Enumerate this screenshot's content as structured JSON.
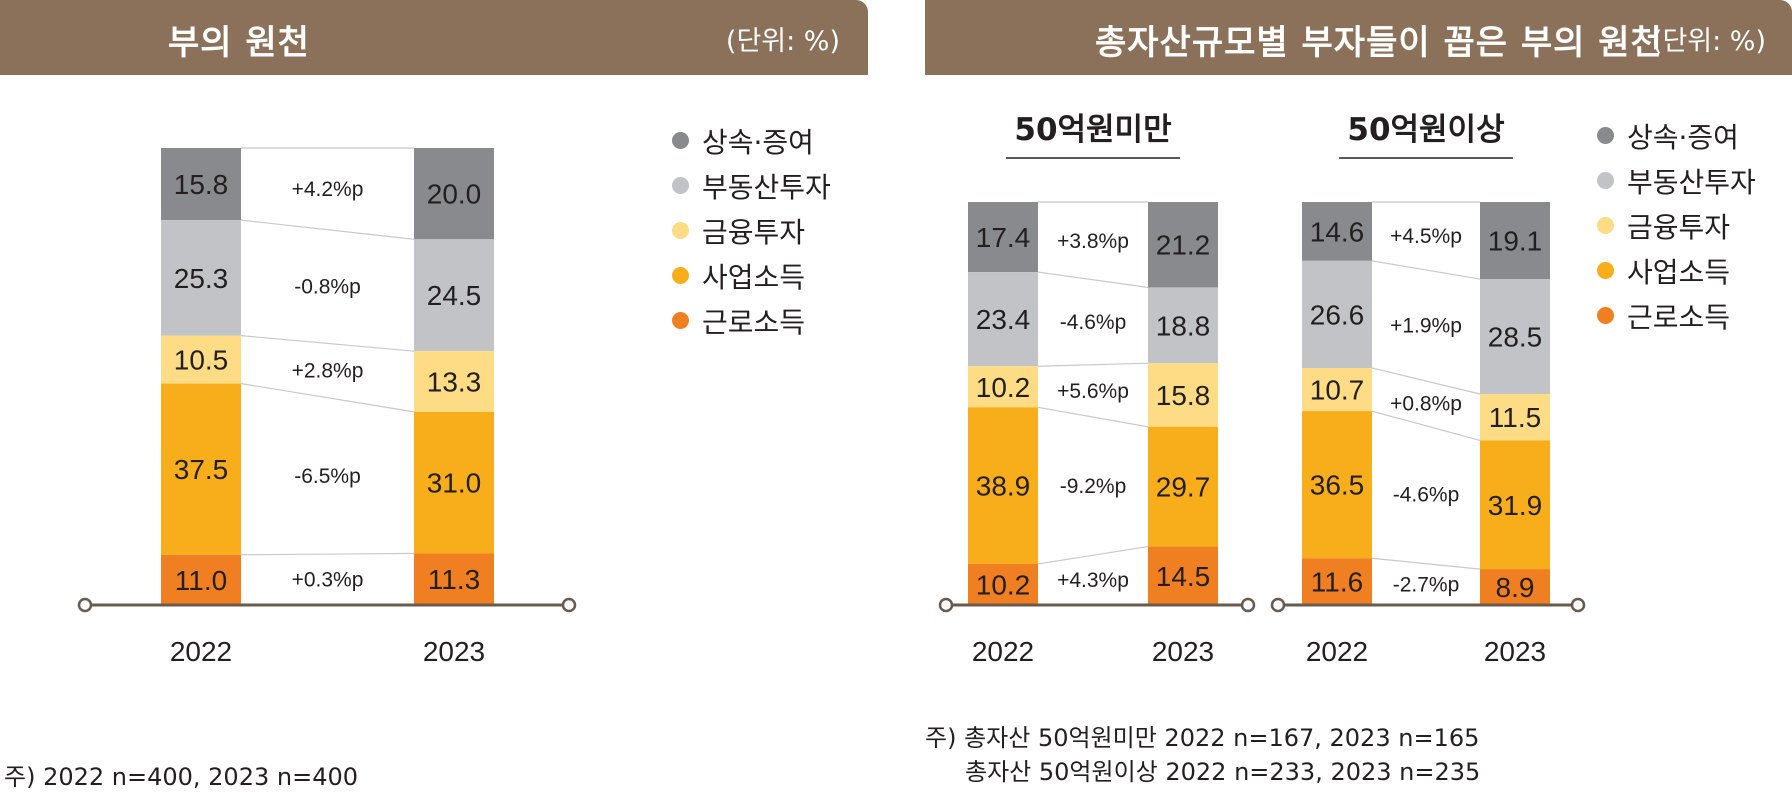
{
  "left_header": {
    "title": "부의 원천",
    "unit": "(단위: %)"
  },
  "right_header": {
    "title": "총자산규모별 부자들이 꼽은 부의 원천",
    "unit": "(단위: %)"
  },
  "colors": {
    "header_bg": "#8c715a",
    "상속·증여": "#898a8d",
    "부동산투자": "#c2c3c6",
    "금융투자": "#fddc85",
    "사업소득": "#f8ae1b",
    "근로소득": "#f07f22",
    "axis": "#6b5a4c"
  },
  "legend": {
    "items": [
      {
        "label": "상속·증여",
        "color": "#898a8d"
      },
      {
        "label": "부동산투자",
        "color": "#c2c3c6"
      },
      {
        "label": "금융투자",
        "color": "#fddc85"
      },
      {
        "label": "사업소득",
        "color": "#f8ae1b"
      },
      {
        "label": "근로소득",
        "color": "#f07f22"
      }
    ]
  },
  "chart_data": [
    {
      "type": "bar",
      "stacked": true,
      "title": "부의 원천",
      "categories": [
        "2022",
        "2023"
      ],
      "series": [
        {
          "name": "상속·증여",
          "values": [
            15.8,
            20.0
          ],
          "change": "+4.2%p"
        },
        {
          "name": "부동산투자",
          "values": [
            25.3,
            24.5
          ],
          "change": "-0.8%p"
        },
        {
          "name": "금융투자",
          "values": [
            10.5,
            13.3
          ],
          "change": "+2.8%p"
        },
        {
          "name": "사업소득",
          "values": [
            37.5,
            31.0
          ],
          "change": "-6.5%p"
        },
        {
          "name": "근로소득",
          "values": [
            11.0,
            11.3
          ],
          "change": "+0.3%p"
        }
      ],
      "unit": "%"
    },
    {
      "type": "bar",
      "stacked": true,
      "title": "50억원미만",
      "categories": [
        "2022",
        "2023"
      ],
      "series": [
        {
          "name": "상속·증여",
          "values": [
            17.4,
            21.2
          ],
          "change": "+3.8%p"
        },
        {
          "name": "부동산투자",
          "values": [
            23.4,
            18.8
          ],
          "change": "-4.6%p"
        },
        {
          "name": "금융투자",
          "values": [
            10.2,
            15.8
          ],
          "change": "+5.6%p"
        },
        {
          "name": "사업소득",
          "values": [
            38.9,
            29.7
          ],
          "change": "-9.2%p"
        },
        {
          "name": "근로소득",
          "values": [
            10.2,
            14.5
          ],
          "change": "+4.3%p"
        }
      ],
      "unit": "%"
    },
    {
      "type": "bar",
      "stacked": true,
      "title": "50억원이상",
      "categories": [
        "2022",
        "2023"
      ],
      "series": [
        {
          "name": "상속·증여",
          "values": [
            14.6,
            19.1
          ],
          "change": "+4.5%p"
        },
        {
          "name": "부동산투자",
          "values": [
            26.6,
            28.5
          ],
          "change": "+1.9%p"
        },
        {
          "name": "금융투자",
          "values": [
            10.7,
            11.5
          ],
          "change": "+0.8%p"
        },
        {
          "name": "사업소득",
          "values": [
            36.5,
            31.9
          ],
          "change": "-4.6%p"
        },
        {
          "name": "근로소득",
          "values": [
            11.6,
            8.9
          ],
          "change": "-2.7%p"
        }
      ],
      "unit": "%"
    }
  ],
  "notes": {
    "left": "주) 2022 n=400, 2023 n=400",
    "right_line1": "주) 총자산 50억원미만 2022 n=167, 2023 n=165",
    "right_line2": "총자산 50억원이상 2022 n=233, 2023 n=235"
  }
}
